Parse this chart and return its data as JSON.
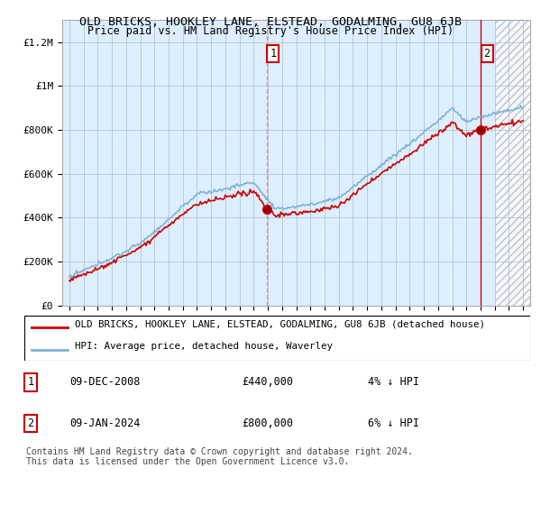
{
  "title": "OLD BRICKS, HOOKLEY LANE, ELSTEAD, GODALMING, GU8 6JB",
  "subtitle": "Price paid vs. HM Land Registry's House Price Index (HPI)",
  "legend_line1": "OLD BRICKS, HOOKLEY LANE, ELSTEAD, GODALMING, GU8 6JB (detached house)",
  "legend_line2": "HPI: Average price, detached house, Waverley",
  "footnote": "Contains HM Land Registry data © Crown copyright and database right 2024.\nThis data is licensed under the Open Government Licence v3.0.",
  "annotation1": {
    "label": "1",
    "date": "09-DEC-2008",
    "price": "£440,000",
    "pct": "4% ↓ HPI"
  },
  "annotation2": {
    "label": "2",
    "date": "09-JAN-2024",
    "price": "£800,000",
    "pct": "6% ↓ HPI"
  },
  "point1_x": 2008.94,
  "point1_y": 440000,
  "point2_x": 2024.03,
  "point2_y": 800000,
  "vline1_x": 2008.94,
  "vline2_x": 2024.03,
  "ylim": [
    0,
    1300000
  ],
  "xlim": [
    1994.5,
    2027.5
  ],
  "yticks": [
    0,
    200000,
    400000,
    600000,
    800000,
    1000000,
    1200000
  ],
  "ytick_labels": [
    "£0",
    "£200K",
    "£400K",
    "£600K",
    "£800K",
    "£1M",
    "£1.2M"
  ],
  "xticks": [
    1995,
    1996,
    1997,
    1998,
    1999,
    2000,
    2001,
    2002,
    2003,
    2004,
    2005,
    2006,
    2007,
    2008,
    2009,
    2010,
    2011,
    2012,
    2013,
    2014,
    2015,
    2016,
    2017,
    2018,
    2019,
    2020,
    2021,
    2022,
    2023,
    2024,
    2025,
    2026,
    2027
  ],
  "property_color": "#cc0000",
  "hpi_color": "#7fb3d3",
  "chart_bg_color": "#ddeeff",
  "background_color": "#ffffff",
  "grid_color": "#aabbcc",
  "hatch_region_start": 2025.0
}
